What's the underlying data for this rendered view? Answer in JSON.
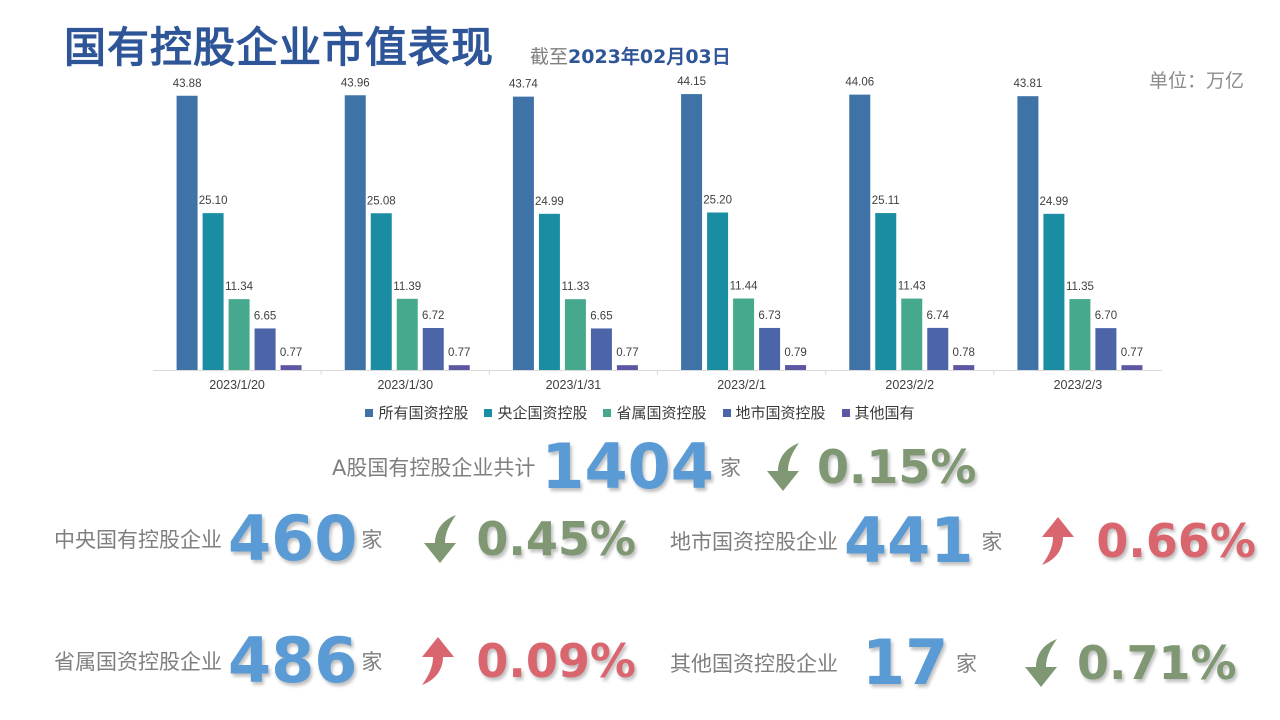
{
  "header": {
    "title": "国有控股企业市值表现",
    "date_prefix": "截至",
    "date_value": "2023年02月03日",
    "unit": "单位：万亿"
  },
  "chart_data": {
    "type": "bar",
    "categories": [
      "2023/1/20",
      "2023/1/30",
      "2023/1/31",
      "2023/2/1",
      "2023/2/2",
      "2023/2/3"
    ],
    "series": [
      {
        "name": "所有国资控股",
        "color": "#3f73a8",
        "values": [
          43.88,
          43.96,
          43.74,
          44.15,
          44.06,
          43.81
        ]
      },
      {
        "name": "央企国资控股",
        "color": "#1a8da2",
        "values": [
          25.1,
          25.08,
          24.99,
          25.2,
          25.11,
          24.99
        ]
      },
      {
        "name": "省属国资控股",
        "color": "#46a98d",
        "values": [
          11.34,
          11.39,
          11.33,
          11.44,
          11.43,
          11.35
        ]
      },
      {
        "name": "地市国资控股",
        "color": "#4c64a8",
        "values": [
          6.65,
          6.72,
          6.65,
          6.73,
          6.74,
          6.7
        ]
      },
      {
        "name": "其他国有",
        "color": "#5c56a3",
        "values": [
          0.77,
          0.77,
          0.77,
          0.79,
          0.78,
          0.77
        ]
      }
    ],
    "ylim": [
      0,
      48
    ],
    "legend": "bottom",
    "grid": false
  },
  "stats": {
    "total": {
      "label": "A股国有控股企业共计",
      "count": "1404",
      "unit": "家",
      "change": "0.15%",
      "direction": "down"
    },
    "central": {
      "label": "中央国有控股企业",
      "count": "460",
      "unit": "家",
      "change": "0.45%",
      "direction": "down"
    },
    "city": {
      "label": "地市国资控股企业",
      "count": "441",
      "unit": "家",
      "change": "0.66%",
      "direction": "up"
    },
    "province": {
      "label": "省属国资控股企业",
      "count": "486",
      "unit": "家",
      "change": "0.09%",
      "direction": "up"
    },
    "other": {
      "label": "其他国资控股企业",
      "count": "17",
      "unit": "家",
      "change": "0.71%",
      "direction": "down"
    }
  }
}
